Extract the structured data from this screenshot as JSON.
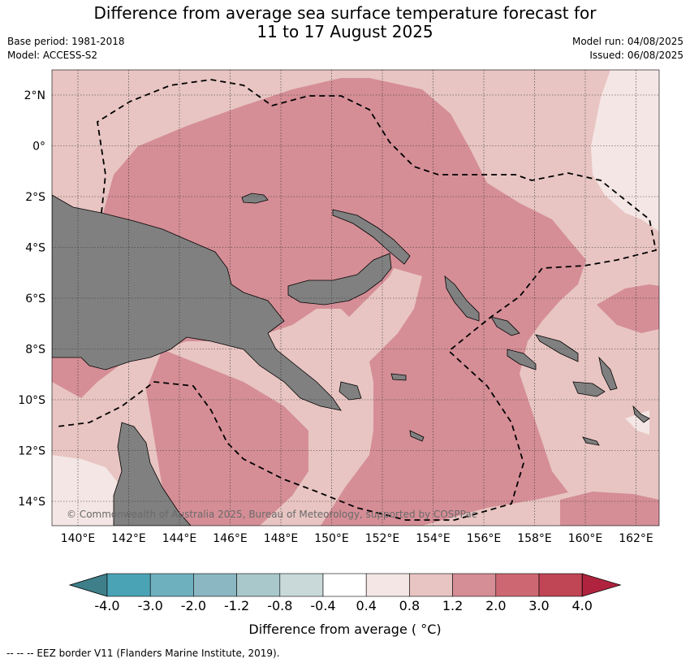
{
  "title_line1": "Difference from average sea surface temperature forecast for",
  "title_line2": "11 to 17 August 2025",
  "base_period": "Base period: 1981-2018",
  "model": "Model: ACCESS-S2",
  "model_run": "Model run: 04/08/2025",
  "issued": "Issued: 06/08/2025",
  "map": {
    "lon_ticks": [
      "140°E",
      "142°E",
      "144°E",
      "146°E",
      "148°E",
      "150°E",
      "152°E",
      "154°E",
      "156°E",
      "158°E",
      "160°E",
      "162°E"
    ],
    "lat_ticks": [
      "2°N",
      "0°",
      "2°S",
      "4°S",
      "6°S",
      "8°S",
      "10°S",
      "12°S",
      "14°S"
    ],
    "attribution": "© Commonwealth of Australia 2025, Bureau of Meteorology, supported by COSPPac",
    "colors": {
      "land": "#808080",
      "band_0_4_0_8": "#f4e6e4",
      "band_0_8_1_2": "#e8c5c2",
      "band_1_2_2_0": "#d58e96"
    }
  },
  "colorbar": {
    "ticks": [
      "-4.0",
      "-3.0",
      "-2.0",
      "-1.2",
      "-0.8",
      "-0.4",
      "0.4",
      "0.8",
      "1.2",
      "2.0",
      "3.0",
      "4.0"
    ],
    "colors": [
      "#3e7f8a",
      "#4aa3b4",
      "#6fb0bf",
      "#8bb7c2",
      "#a9c8cc",
      "#c9d9da",
      "#ffffff",
      "#f4e6e4",
      "#e8c5c2",
      "#d58e96",
      "#cd6873",
      "#c04555",
      "#b0233e"
    ],
    "label": "Difference from average ( °C)"
  },
  "footer": "--  --  -- EEZ border V11 (Flanders Marine Institute, 2019)."
}
